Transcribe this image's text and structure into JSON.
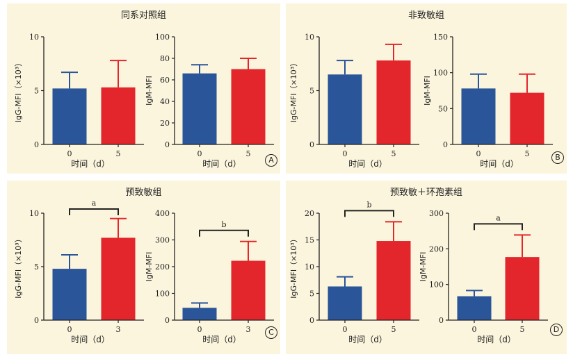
{
  "colors": {
    "panel_bg": "#fbf5dd",
    "blue": "#2a5599",
    "red": "#e3262b",
    "axis": "#222222"
  },
  "panels": [
    {
      "id": "A",
      "title": "同系对照组",
      "label": "A"
    },
    {
      "id": "B",
      "title": "非致敏组",
      "label": "B"
    },
    {
      "id": "C",
      "title": "预致敏组",
      "label": "C"
    },
    {
      "id": "D",
      "title": "预致敏＋环孢素组",
      "label": "D"
    }
  ],
  "chart_data": [
    {
      "panel": "A",
      "type": "bar",
      "ylabel": "IgG-MFI（×10³）",
      "xlabel": "时间（d）",
      "categories": [
        "0",
        "5"
      ],
      "values": [
        5.2,
        5.3
      ],
      "errors": [
        1.5,
        2.5
      ],
      "ylim": [
        0,
        10
      ],
      "yticks": [
        "0",
        "5",
        "10"
      ],
      "sig": null
    },
    {
      "panel": "A",
      "type": "bar",
      "ylabel": "IgM-MFI",
      "xlabel": "时间（d）",
      "categories": [
        "0",
        "5"
      ],
      "values": [
        66,
        70
      ],
      "errors": [
        8,
        10
      ],
      "ylim": [
        0,
        100
      ],
      "yticks": [
        "0",
        "20",
        "40",
        "60",
        "80",
        "100"
      ],
      "sig": null
    },
    {
      "panel": "B",
      "type": "bar",
      "ylabel": "IgG-MFI（×10³）",
      "xlabel": "时间（d）",
      "categories": [
        "0",
        "5"
      ],
      "values": [
        6.5,
        7.8
      ],
      "errors": [
        1.3,
        1.5
      ],
      "ylim": [
        0,
        10
      ],
      "yticks": [
        "0",
        "5",
        "10"
      ],
      "sig": null
    },
    {
      "panel": "B",
      "type": "bar",
      "ylabel": "IgM-MFI",
      "xlabel": "时间（d）",
      "categories": [
        "0",
        "5"
      ],
      "values": [
        78,
        72
      ],
      "errors": [
        20,
        26
      ],
      "ylim": [
        0,
        150
      ],
      "yticks": [
        "0",
        "50",
        "100",
        "150"
      ],
      "sig": null
    },
    {
      "panel": "C",
      "type": "bar",
      "ylabel": "IgG-MFI（×10³）",
      "xlabel": "时间（d）",
      "categories": [
        "0",
        "3"
      ],
      "values": [
        4.8,
        7.7
      ],
      "errors": [
        1.3,
        1.8
      ],
      "ylim": [
        0,
        10
      ],
      "yticks": [
        "0",
        "5",
        "10"
      ],
      "sig": "a"
    },
    {
      "panel": "C",
      "type": "bar",
      "ylabel": "IgM-MFI",
      "xlabel": "时间（d）",
      "categories": [
        "0",
        "3"
      ],
      "values": [
        46,
        222
      ],
      "errors": [
        18,
        72
      ],
      "ylim": [
        0,
        400
      ],
      "yticks": [
        "0",
        "100",
        "200",
        "300",
        "400"
      ],
      "sig": "b"
    },
    {
      "panel": "D",
      "type": "bar",
      "ylabel": "IgG-MFI（×10³）",
      "xlabel": "时间（d）",
      "categories": [
        "0",
        "5"
      ],
      "values": [
        6.3,
        14.8
      ],
      "errors": [
        1.8,
        3.6
      ],
      "ylim": [
        0,
        20
      ],
      "yticks": [
        "0",
        "5",
        "10",
        "15",
        "20"
      ],
      "sig": "b"
    },
    {
      "panel": "D",
      "type": "bar",
      "ylabel": "IgM-MFI",
      "xlabel": "时间（d）",
      "categories": [
        "0",
        "5"
      ],
      "values": [
        67,
        177
      ],
      "errors": [
        16,
        62
      ],
      "ylim": [
        0,
        300
      ],
      "yticks": [
        "0",
        "100",
        "200",
        "300"
      ],
      "sig": "a"
    }
  ]
}
